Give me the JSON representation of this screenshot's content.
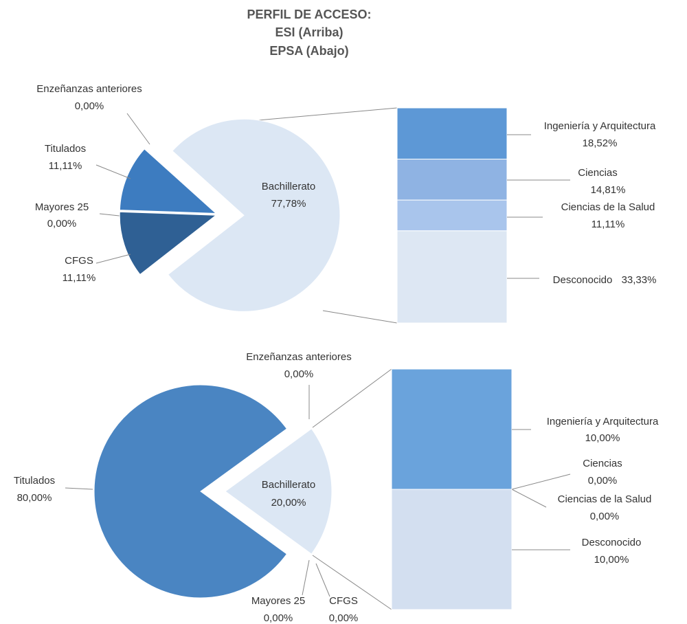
{
  "title": [
    "PERFIL DE ACCESO:",
    "ESI (Arriba)",
    "EPSA (Abajo)"
  ],
  "chart_data": [
    {
      "type": "pie-of-bar",
      "categories": [
        "Enzeñanzas anteriores",
        "Titulados",
        "Mayores 25",
        "CFGS",
        "Bachillerato"
      ],
      "values": [
        0,
        11.11,
        0,
        11.11,
        77.78
      ],
      "value_labels": [
        "0,00%",
        "11,11%",
        "0,00%",
        "11,11%",
        "77,78%"
      ],
      "colors": [
        "#4a7fb8",
        "#3d7cc0",
        "#6a8fb5",
        "#2f6094",
        "#dce7f4"
      ],
      "bar_categories": [
        "Ingeniería y Arquitectura",
        "Ciencias",
        "Ciencias de la Salud",
        "Desconocido"
      ],
      "bar_values": [
        18.52,
        14.81,
        11.11,
        33.33
      ],
      "bar_value_labels": [
        "18,52%",
        "14,81%",
        "11,11%",
        "33,33%"
      ],
      "bar_colors": [
        "#5d98d6",
        "#8fb3e3",
        "#a9c5ec",
        "#dde7f3"
      ]
    },
    {
      "type": "pie-of-bar",
      "categories": [
        "Enzeñanzas anteriores",
        "Titulados",
        "Mayores 25",
        "CFGS",
        "Bachillerato"
      ],
      "values": [
        0,
        80,
        0,
        0,
        20
      ],
      "value_labels": [
        "0,00%",
        "80,00%",
        "0,00%",
        "0,00%",
        "20,00%"
      ],
      "colors": [
        "#4a7fb8",
        "#4a85c2",
        "#6a8fb5",
        "#2f6094",
        "#dce7f4"
      ],
      "bar_categories": [
        "Ingeniería y Arquitectura",
        "Ciencias",
        "Ciencias de la Salud",
        "Desconocido"
      ],
      "bar_values": [
        10,
        0,
        0,
        10
      ],
      "bar_value_labels": [
        "10,00%",
        "0,00%",
        "0,00%",
        "10,00%"
      ],
      "bar_colors": [
        "#6aa3dc",
        "#8fb3e3",
        "#a9c5ec",
        "#d3dff0"
      ]
    }
  ]
}
